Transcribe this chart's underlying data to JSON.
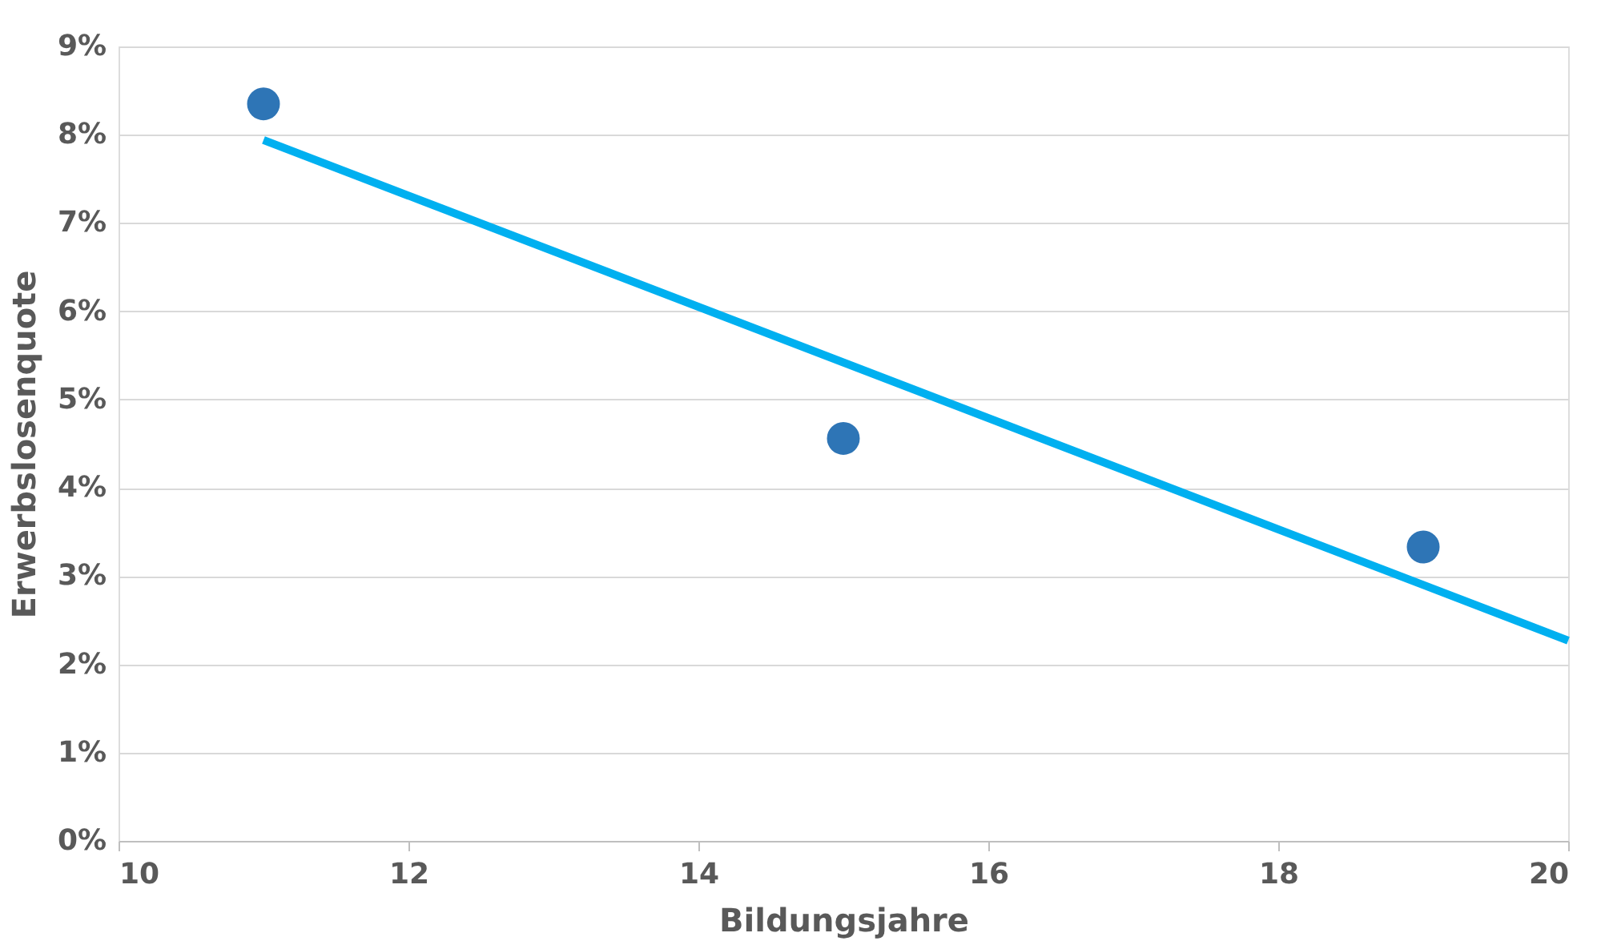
{
  "chart_data": {
    "type": "scatter",
    "xlabel": "Bildungsjahre",
    "ylabel": "Erwerbslosenquote",
    "series": [
      {
        "color": "#2e75b6",
        "x": [
          11,
          15,
          19
        ],
        "values": [
          8.35,
          4.56,
          3.33
        ],
        "marker": "circle"
      },
      {
        "type": "line",
        "color": "#00b0f0",
        "x": [
          11,
          20
        ],
        "values": [
          7.94,
          2.27
        ],
        "marker": "none",
        "line_style": "solid"
      }
    ],
    "xlim": [
      10,
      20
    ],
    "xticks": [
      10,
      12,
      14,
      16,
      18,
      20
    ],
    "ylim": [
      0,
      9
    ],
    "yticks": [
      {
        "value": 0,
        "label": "0%"
      },
      {
        "value": 1,
        "label": "1%"
      },
      {
        "value": 2,
        "label": "2%"
      },
      {
        "value": 3,
        "label": "3%"
      },
      {
        "value": 4,
        "label": "4%"
      },
      {
        "value": 5,
        "label": "5%"
      },
      {
        "value": 6,
        "label": "6%"
      },
      {
        "value": 7,
        "label": "7%"
      },
      {
        "value": 8,
        "label": "8%"
      },
      {
        "value": 9,
        "label": "9%"
      }
    ],
    "grid": "y",
    "legend": false
  }
}
